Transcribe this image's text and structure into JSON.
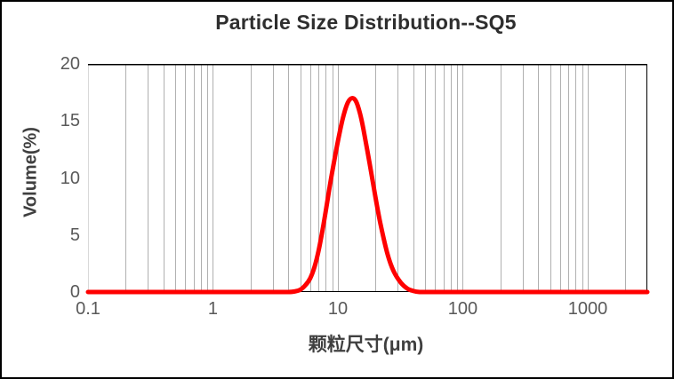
{
  "title": "Particle Size Distribution--SQ5",
  "chart_data": {
    "type": "line",
    "title": "Particle Size Distribution--SQ5",
    "xlabel": "颗粒尺寸(μm)",
    "ylabel": "Volume(%)",
    "x_scale": "log",
    "xlim": [
      0.1,
      3000
    ],
    "ylim": [
      0,
      20
    ],
    "y_ticks": [
      0,
      5,
      10,
      15,
      20
    ],
    "x_ticks": [
      {
        "value": 0.1,
        "label": "0.1"
      },
      {
        "value": 1,
        "label": "1"
      },
      {
        "value": 10,
        "label": "10"
      },
      {
        "value": 100,
        "label": "100"
      },
      {
        "value": 1000,
        "label": "1000"
      }
    ],
    "grid": "vertical minor log gridlines only",
    "legend": "none",
    "series": [
      {
        "name": "SQ5",
        "color": "#ff0000",
        "peak": {
          "x": 13,
          "y": 17
        },
        "points": [
          [
            0.1,
            0
          ],
          [
            0.5,
            0
          ],
          [
            1,
            0
          ],
          [
            2,
            0
          ],
          [
            3,
            0
          ],
          [
            4,
            0
          ],
          [
            4.5,
            0.05
          ],
          [
            5,
            0.2
          ],
          [
            5.5,
            0.6
          ],
          [
            6,
            1.2
          ],
          [
            6.5,
            2.2
          ],
          [
            7,
            3.6
          ],
          [
            7.5,
            5.3
          ],
          [
            8,
            7.1
          ],
          [
            8.5,
            8.9
          ],
          [
            9,
            10.5
          ],
          [
            10,
            13.2
          ],
          [
            11,
            15.3
          ],
          [
            12,
            16.6
          ],
          [
            13,
            17
          ],
          [
            14,
            16.7
          ],
          [
            15,
            15.7
          ],
          [
            16,
            14.3
          ],
          [
            18,
            11.2
          ],
          [
            20,
            8.3
          ],
          [
            22,
            5.9
          ],
          [
            25,
            3.3
          ],
          [
            28,
            1.8
          ],
          [
            32,
            0.8
          ],
          [
            36,
            0.3
          ],
          [
            40,
            0.1
          ],
          [
            45,
            0
          ],
          [
            50,
            0
          ],
          [
            100,
            0
          ],
          [
            500,
            0
          ],
          [
            1000,
            0
          ],
          [
            3000,
            0
          ]
        ]
      }
    ]
  },
  "layout_colors": {
    "curve": "#ff0000",
    "gridline": "#b0b0b0",
    "left_spine": "#d9d9d9",
    "border": "#000000",
    "title_text": "#2e2e2e",
    "axis_title_text": "#3f3f3f",
    "tick_text": "#595959",
    "background": "#ffffff"
  }
}
